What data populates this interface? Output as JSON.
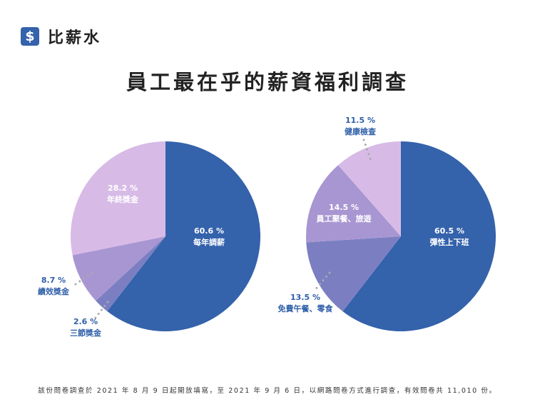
{
  "brand": {
    "name": "比薪水",
    "icon": "dollar-sign-icon"
  },
  "title": "員工最在乎的薪資福利調查",
  "footnote": "該份問卷調查於 2021 年 8 月 9 日起開放填寫，至 2021 年 9 月 6 日，以網路問卷方式進行調查，有效問卷共 11,010 份。",
  "colors": {
    "blue": "#3462ab",
    "slate": "#7b7fc2",
    "purple": "#a896d2",
    "lilac": "#d7bbe6",
    "label_out": "#2f5fa8"
  },
  "chart_data": [
    {
      "type": "pie",
      "start": "top",
      "direction": "clockwise",
      "slices": [
        {
          "label": "每年調薪",
          "value": 60.6,
          "text": "60.6 %",
          "color": "#3462ab"
        },
        {
          "label": "三節獎金",
          "value": 2.6,
          "text": "2.6 %",
          "color": "#7b7fc2"
        },
        {
          "label": "績效獎金",
          "value": 8.7,
          "text": "8.7 %",
          "color": "#a896d2"
        },
        {
          "label": "年終獎金",
          "value": 28.2,
          "text": "28.2 %",
          "color": "#d7bbe6"
        }
      ]
    },
    {
      "type": "pie",
      "start": "top",
      "direction": "clockwise",
      "slices": [
        {
          "label": "彈性上下班",
          "value": 60.5,
          "text": "60.5 %",
          "color": "#3462ab"
        },
        {
          "label": "免費午餐、零食",
          "value": 13.5,
          "text": "13.5 %",
          "color": "#7b7fc2"
        },
        {
          "label": "員工聚餐、旅遊",
          "value": 14.5,
          "text": "14.5 %",
          "color": "#a896d2"
        },
        {
          "label": "健康檢查",
          "value": 11.5,
          "text": "11.5 %",
          "color": "#d7bbe6"
        }
      ]
    }
  ]
}
